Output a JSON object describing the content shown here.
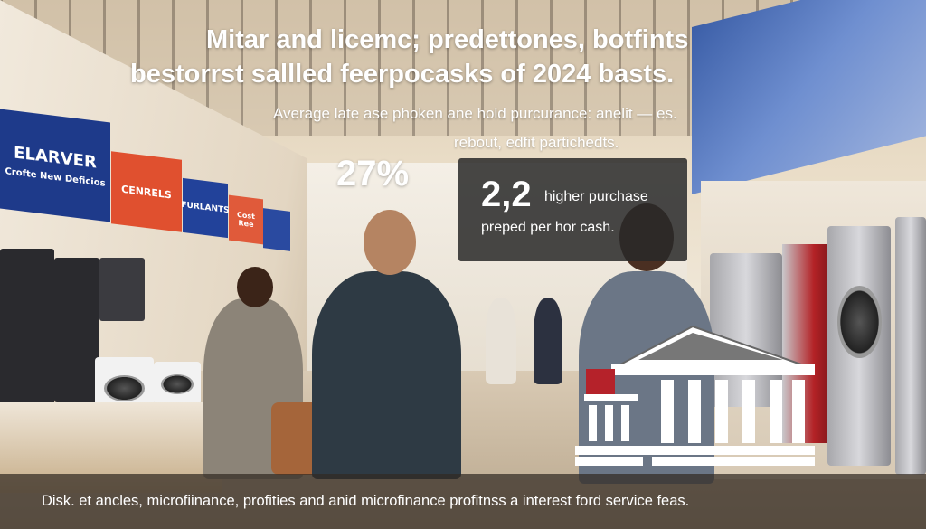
{
  "headline": {
    "line1": "Mitar and licemc; predettones, botfints",
    "line2": "bestorrst sallled feerpocasks of 2024 basts."
  },
  "subtitle": {
    "line1": "Average late ase phoken ane hold purcurance: anelit — es.",
    "line2": "rebout, edfit partichedts."
  },
  "stat_left": {
    "value": "27%"
  },
  "stat_box": {
    "value": "2,2",
    "label_line1": "higher purchase",
    "label_line2": "preped per hor cash."
  },
  "store_signs": [
    {
      "text": "ELARVER",
      "subtext": "Crofte New Deficios",
      "color": "#1e3a8a"
    },
    {
      "text": "CENRELS",
      "color": "#e0502f"
    },
    {
      "text": "FURLANTS",
      "color": "#22429a"
    },
    {
      "text": "Cost Ree",
      "color": "#e05a3a"
    },
    {
      "text": "",
      "color": "#2a4aa0"
    }
  ],
  "caption": "Disk. et ancles, microfiinance, profities and anid microfinance profitnss a interest ford service feas.",
  "icons": {
    "bank": "bank-building-icon"
  },
  "colors": {
    "overlay_dark": "#282828",
    "caption_bar": "#322a22",
    "text": "#ffffff"
  }
}
